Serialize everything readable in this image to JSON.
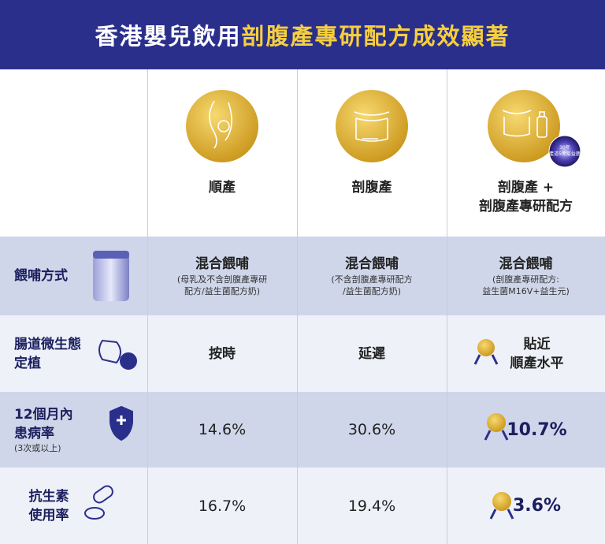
{
  "header": {
    "title_white": "香港嬰兒飲用",
    "title_yellow": "剖腹產專研配方成效顯著"
  },
  "columns": [
    {
      "lines": [
        "順產"
      ]
    },
    {
      "lines": [
        "剖腹產"
      ]
    },
    {
      "lines": [
        "剖腹產 +",
        "剖腹產專研配方"
      ],
      "badge": [
        "30年",
        "產道5免疫益菌"
      ]
    }
  ],
  "table": {
    "rows": [
      {
        "label": [
          "餵哺方式"
        ],
        "cells": [
          {
            "main": [
              "混合餵哺"
            ],
            "note": [
              "(母乳及不含剖腹產專研",
              "配方/益生菌配方奶)"
            ]
          },
          {
            "main": [
              "混合餵哺"
            ],
            "note": [
              "(不含剖腹產專研配方",
              "/益生菌配方奶)"
            ]
          },
          {
            "main": [
              "混合餵哺"
            ],
            "note": [
              "(剖腹產專研配方:",
              "益生菌M16V+益生元)"
            ]
          }
        ]
      },
      {
        "label": [
          "腸道微生態",
          "定植"
        ],
        "cells": [
          {
            "main": [
              "按時"
            ]
          },
          {
            "main": [
              "延遲"
            ]
          },
          {
            "main": [
              "貼近",
              "順產水平"
            ]
          }
        ]
      },
      {
        "label": [
          "12個月內",
          "患病率"
        ],
        "note": "(3次或以上)",
        "cells": [
          {
            "main": [
              "14.6%"
            ]
          },
          {
            "main": [
              "30.6%"
            ]
          },
          {
            "main": [
              "10.7%"
            ]
          }
        ]
      },
      {
        "label": [
          "抗生素",
          "使用率"
        ],
        "cells": [
          {
            "main": [
              "16.7%"
            ]
          },
          {
            "main": [
              "19.4%"
            ]
          },
          {
            "main": [
              "3.6%"
            ]
          }
        ]
      }
    ]
  }
}
